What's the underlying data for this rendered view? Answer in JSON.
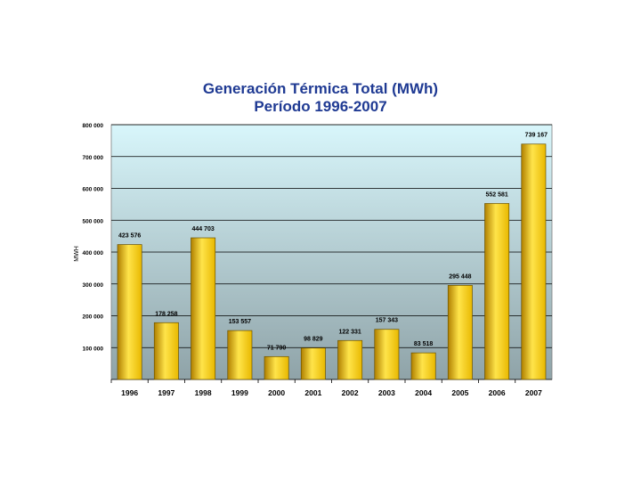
{
  "chart_data": {
    "type": "bar",
    "title": "Generación Térmica Total (MWh)",
    "subtitle": "Período 1996-2007",
    "xlabel": "",
    "ylabel": "MWH",
    "ylim": [
      0,
      800000
    ],
    "yticks": [
      0,
      100000,
      200000,
      300000,
      400000,
      500000,
      600000,
      700000,
      800000
    ],
    "ytick_labels": [
      "",
      "100 000",
      "200 000",
      "300 000",
      "400 000",
      "500 000",
      "600 000",
      "700 000",
      "800 000"
    ],
    "categories": [
      "1996",
      "1997",
      "1998",
      "1999",
      "2000",
      "2001",
      "2002",
      "2003",
      "2004",
      "2005",
      "2006",
      "2007"
    ],
    "values": [
      423576,
      178258,
      444703,
      153557,
      71790,
      98829,
      122331,
      157343,
      83518,
      295448,
      552581,
      739167
    ],
    "data_labels": [
      "423 576",
      "178 258",
      "444 703",
      "153 557",
      "71 790",
      "98 829",
      "122 331",
      "157 343",
      "83 518",
      "295 448",
      "552 581",
      "739 167"
    ],
    "grid": true,
    "colors": {
      "bar": "#e8b800",
      "bar_light": "#ffe44a",
      "bar_dark": "#b08000",
      "plot_top": "#d8f6fb",
      "plot_bottom": "#8fa3a8",
      "title": "#1f3a93"
    }
  }
}
